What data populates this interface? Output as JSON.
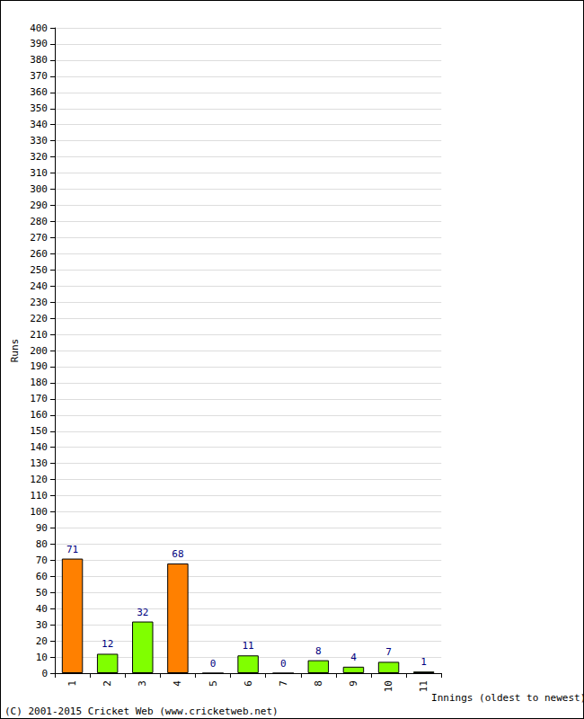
{
  "chart_data": {
    "type": "bar",
    "categories": [
      "1",
      "2",
      "3",
      "4",
      "5",
      "6",
      "7",
      "8",
      "9",
      "10",
      "11"
    ],
    "values": [
      71,
      12,
      32,
      68,
      0,
      11,
      0,
      8,
      4,
      7,
      1
    ],
    "colors": [
      "#ff8000",
      "#80ff00",
      "#80ff00",
      "#ff8000",
      "#80ff00",
      "#80ff00",
      "#80ff00",
      "#80ff00",
      "#80ff00",
      "#80ff00",
      "#80ff00"
    ],
    "x_label": "Innings (oldest to newest)",
    "y_label": "Runs",
    "ylim": [
      0,
      400
    ],
    "yticks": [
      0,
      10,
      20,
      30,
      40,
      50,
      60,
      70,
      80,
      90,
      100,
      110,
      120,
      130,
      140,
      150,
      160,
      170,
      180,
      190,
      200,
      210,
      220,
      230,
      240,
      250,
      260,
      270,
      280,
      290,
      300,
      310,
      320,
      330,
      340,
      350,
      360,
      370,
      380,
      390,
      400
    ],
    "grid": true,
    "data_labels": true,
    "annotations": [
      "(C) 2001-2015 Cricket Web (www.cricketweb.net)"
    ]
  }
}
